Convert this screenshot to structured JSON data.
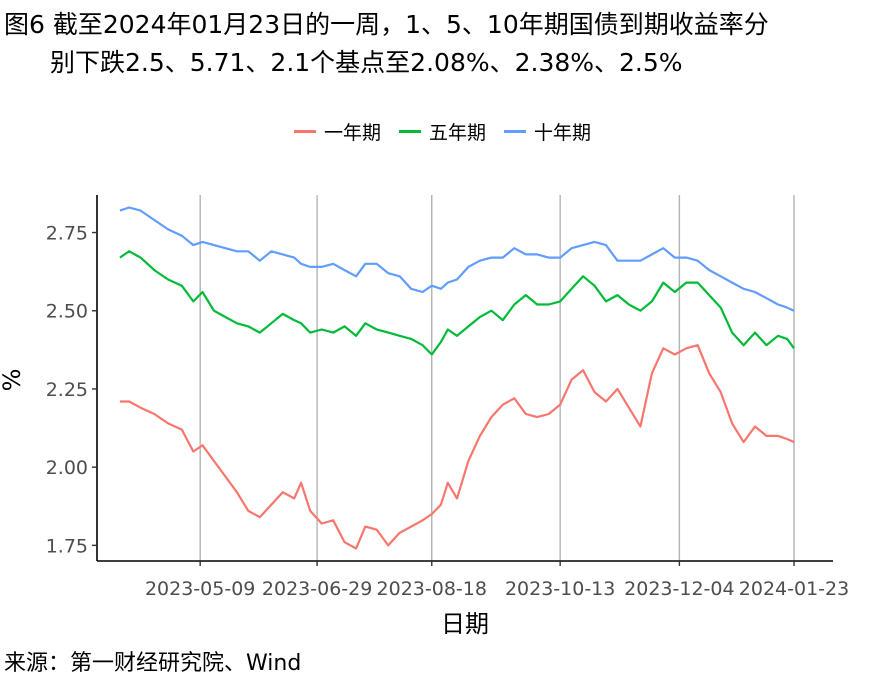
{
  "title_line1": "图6  截至2024年01月23日的一周，1、5、10年期国债到期收益率分",
  "title_line2": "别下跌2.5、5.71、2.1个基点至2.08%、2.38%、2.5%",
  "source": "来源：第一财经研究院、Wind",
  "chart_data": {
    "type": "line",
    "xlabel": "日期",
    "ylabel": "%",
    "ylim": [
      1.7,
      2.87
    ],
    "yticks": [
      1.75,
      2.0,
      2.25,
      2.5,
      2.75
    ],
    "ytick_labels": [
      "1.75",
      "2.00",
      "2.25",
      "2.50",
      "2.75"
    ],
    "xlim": [
      "2023-03-25",
      "2024-02-09"
    ],
    "xticks": [
      "2023-05-09",
      "2023-06-29",
      "2023-08-18",
      "2023-10-13",
      "2023-12-04",
      "2024-01-23"
    ],
    "grid": "vertical",
    "legend_position": "top",
    "series": [
      {
        "name": "一年期",
        "color": "#F8766D",
        "x": [
          "2023-04-04",
          "2023-04-08",
          "2023-04-13",
          "2023-04-19",
          "2023-04-25",
          "2023-05-01",
          "2023-05-06",
          "2023-05-10",
          "2023-05-15",
          "2023-05-20",
          "2023-05-25",
          "2023-05-30",
          "2023-06-04",
          "2023-06-09",
          "2023-06-14",
          "2023-06-19",
          "2023-06-22",
          "2023-06-26",
          "2023-07-01",
          "2023-07-06",
          "2023-07-11",
          "2023-07-16",
          "2023-07-20",
          "2023-07-25",
          "2023-07-30",
          "2023-08-04",
          "2023-08-09",
          "2023-08-14",
          "2023-08-18",
          "2023-08-22",
          "2023-08-25",
          "2023-08-29",
          "2023-09-03",
          "2023-09-08",
          "2023-09-13",
          "2023-09-18",
          "2023-09-23",
          "2023-09-28",
          "2023-10-03",
          "2023-10-08",
          "2023-10-13",
          "2023-10-18",
          "2023-10-23",
          "2023-10-28",
          "2023-11-02",
          "2023-11-07",
          "2023-11-12",
          "2023-11-17",
          "2023-11-22",
          "2023-11-27",
          "2023-12-02",
          "2023-12-07",
          "2023-12-12",
          "2023-12-17",
          "2023-12-22",
          "2023-12-27",
          "2024-01-01",
          "2024-01-06",
          "2024-01-11",
          "2024-01-16",
          "2024-01-20",
          "2024-01-23"
        ],
        "values": [
          2.21,
          2.21,
          2.19,
          2.17,
          2.14,
          2.12,
          2.05,
          2.07,
          2.02,
          1.97,
          1.92,
          1.86,
          1.84,
          1.88,
          1.92,
          1.9,
          1.95,
          1.86,
          1.82,
          1.83,
          1.76,
          1.74,
          1.81,
          1.8,
          1.75,
          1.79,
          1.81,
          1.83,
          1.85,
          1.88,
          1.95,
          1.9,
          2.02,
          2.1,
          2.16,
          2.2,
          2.22,
          2.17,
          2.16,
          2.17,
          2.2,
          2.28,
          2.31,
          2.24,
          2.21,
          2.25,
          2.19,
          2.13,
          2.3,
          2.38,
          2.36,
          2.38,
          2.39,
          2.3,
          2.24,
          2.14,
          2.08,
          2.13,
          2.1,
          2.1,
          2.09,
          2.08
        ]
      },
      {
        "name": "五年期",
        "color": "#00BA38",
        "x": [
          "2023-04-04",
          "2023-04-08",
          "2023-04-13",
          "2023-04-19",
          "2023-04-25",
          "2023-05-01",
          "2023-05-06",
          "2023-05-10",
          "2023-05-15",
          "2023-05-20",
          "2023-05-25",
          "2023-05-30",
          "2023-06-04",
          "2023-06-09",
          "2023-06-14",
          "2023-06-19",
          "2023-06-22",
          "2023-06-26",
          "2023-07-01",
          "2023-07-06",
          "2023-07-11",
          "2023-07-16",
          "2023-07-20",
          "2023-07-25",
          "2023-07-30",
          "2023-08-04",
          "2023-08-09",
          "2023-08-14",
          "2023-08-18",
          "2023-08-22",
          "2023-08-25",
          "2023-08-29",
          "2023-09-03",
          "2023-09-08",
          "2023-09-13",
          "2023-09-18",
          "2023-09-23",
          "2023-09-28",
          "2023-10-03",
          "2023-10-08",
          "2023-10-13",
          "2023-10-18",
          "2023-10-23",
          "2023-10-28",
          "2023-11-02",
          "2023-11-07",
          "2023-11-12",
          "2023-11-17",
          "2023-11-22",
          "2023-11-27",
          "2023-12-02",
          "2023-12-07",
          "2023-12-12",
          "2023-12-17",
          "2023-12-22",
          "2023-12-27",
          "2024-01-01",
          "2024-01-06",
          "2024-01-11",
          "2024-01-16",
          "2024-01-20",
          "2024-01-23"
        ],
        "values": [
          2.67,
          2.69,
          2.67,
          2.63,
          2.6,
          2.58,
          2.53,
          2.56,
          2.5,
          2.48,
          2.46,
          2.45,
          2.43,
          2.46,
          2.49,
          2.47,
          2.46,
          2.43,
          2.44,
          2.43,
          2.45,
          2.42,
          2.46,
          2.44,
          2.43,
          2.42,
          2.41,
          2.39,
          2.36,
          2.4,
          2.44,
          2.42,
          2.45,
          2.48,
          2.5,
          2.47,
          2.52,
          2.55,
          2.52,
          2.52,
          2.53,
          2.57,
          2.61,
          2.58,
          2.53,
          2.55,
          2.52,
          2.5,
          2.53,
          2.59,
          2.56,
          2.59,
          2.59,
          2.55,
          2.51,
          2.43,
          2.39,
          2.43,
          2.39,
          2.42,
          2.41,
          2.38
        ]
      },
      {
        "name": "十年期",
        "color": "#619CFF",
        "x": [
          "2023-04-04",
          "2023-04-08",
          "2023-04-13",
          "2023-04-19",
          "2023-04-25",
          "2023-05-01",
          "2023-05-06",
          "2023-05-10",
          "2023-05-15",
          "2023-05-20",
          "2023-05-25",
          "2023-05-30",
          "2023-06-04",
          "2023-06-09",
          "2023-06-14",
          "2023-06-19",
          "2023-06-22",
          "2023-06-26",
          "2023-07-01",
          "2023-07-06",
          "2023-07-11",
          "2023-07-16",
          "2023-07-20",
          "2023-07-25",
          "2023-07-30",
          "2023-08-04",
          "2023-08-09",
          "2023-08-14",
          "2023-08-18",
          "2023-08-22",
          "2023-08-25",
          "2023-08-29",
          "2023-09-03",
          "2023-09-08",
          "2023-09-13",
          "2023-09-18",
          "2023-09-23",
          "2023-09-28",
          "2023-10-03",
          "2023-10-08",
          "2023-10-13",
          "2023-10-18",
          "2023-10-23",
          "2023-10-28",
          "2023-11-02",
          "2023-11-07",
          "2023-11-12",
          "2023-11-17",
          "2023-11-22",
          "2023-11-27",
          "2023-12-02",
          "2023-12-07",
          "2023-12-12",
          "2023-12-17",
          "2023-12-22",
          "2023-12-27",
          "2024-01-01",
          "2024-01-06",
          "2024-01-11",
          "2024-01-16",
          "2024-01-20",
          "2024-01-23"
        ],
        "values": [
          2.82,
          2.83,
          2.82,
          2.79,
          2.76,
          2.74,
          2.71,
          2.72,
          2.71,
          2.7,
          2.69,
          2.69,
          2.66,
          2.69,
          2.68,
          2.67,
          2.65,
          2.64,
          2.64,
          2.65,
          2.63,
          2.61,
          2.65,
          2.65,
          2.62,
          2.61,
          2.57,
          2.56,
          2.58,
          2.57,
          2.59,
          2.6,
          2.64,
          2.66,
          2.67,
          2.67,
          2.7,
          2.68,
          2.68,
          2.67,
          2.67,
          2.7,
          2.71,
          2.72,
          2.71,
          2.66,
          2.66,
          2.66,
          2.68,
          2.7,
          2.67,
          2.67,
          2.66,
          2.63,
          2.61,
          2.59,
          2.57,
          2.56,
          2.54,
          2.52,
          2.51,
          2.5
        ]
      }
    ]
  }
}
